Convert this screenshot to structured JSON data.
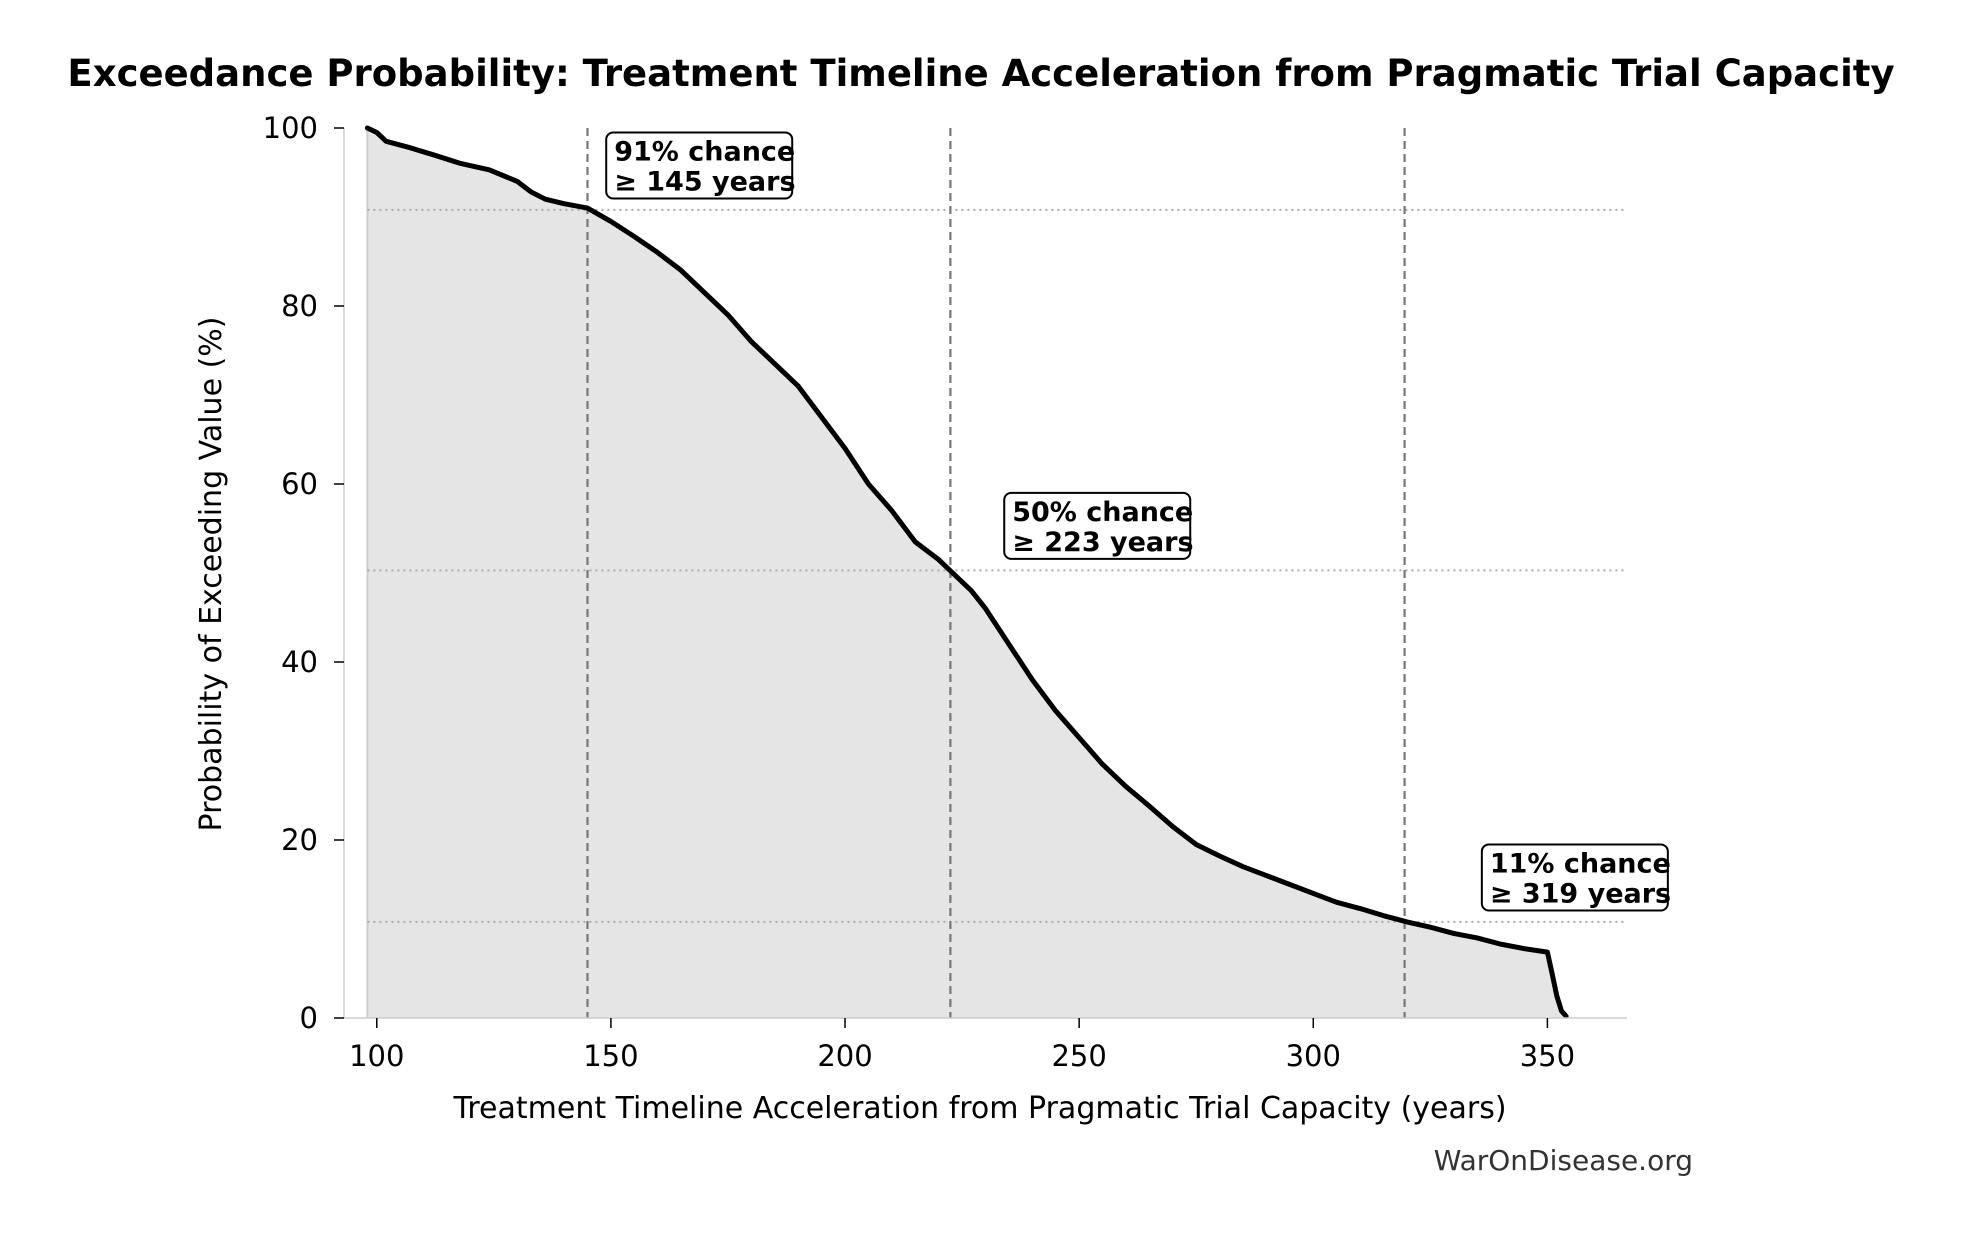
{
  "chart_data": {
    "type": "area",
    "title": "Exceedance Probability: Treatment Timeline Acceleration from Pragmatic Trial Capacity",
    "xlabel": "Treatment Timeline Acceleration from Pragmatic Trial Capacity (years)",
    "ylabel": "Probability of Exceeding Value (%)",
    "xlim": [
      93,
      367
    ],
    "ylim": [
      0,
      100
    ],
    "xticks": [
      100,
      150,
      200,
      250,
      300,
      350
    ],
    "yticks": [
      0,
      20,
      40,
      60,
      80,
      100
    ],
    "grid": false,
    "series": [
      {
        "x": [
          98,
          100,
          102,
          107,
          112,
          118,
          124,
          130,
          133,
          136,
          140,
          145,
          150,
          155,
          160,
          165,
          170,
          175,
          180,
          185,
          190,
          195,
          200,
          205,
          210,
          215,
          220,
          223,
          227,
          230,
          235,
          240,
          245,
          250,
          255,
          260,
          265,
          270,
          275,
          280,
          285,
          290,
          295,
          300,
          305,
          310,
          315,
          320,
          325,
          330,
          335,
          340,
          345,
          350,
          351,
          352,
          353,
          354
        ],
        "y": [
          100,
          99.5,
          98.5,
          97.8,
          97,
          96,
          95.3,
          94,
          92.8,
          92,
          91.5,
          91,
          89.5,
          87.8,
          86,
          84,
          81.5,
          79,
          76,
          73.5,
          71,
          67.5,
          64,
          60,
          57,
          53.5,
          51.5,
          50,
          48,
          46,
          42,
          38,
          34.5,
          31.5,
          28.5,
          26,
          23.8,
          21.5,
          19.5,
          18.2,
          17,
          16,
          15,
          14,
          13,
          12.3,
          11.5,
          10.8,
          10.2,
          9.5,
          9,
          8.3,
          7.8,
          7.4,
          5,
          2.5,
          0.8,
          0.2
        ]
      }
    ],
    "reference_lines": [
      {
        "x": 145,
        "y": 90.8,
        "label_line1": "91% chance",
        "label_line2": "≥ 145 years",
        "label_x": 149,
        "label_y": 99.5
      },
      {
        "x": 222.5,
        "y": 50.3,
        "label_line1": "50% chance",
        "label_line2": "≥ 223 years",
        "label_x": 234,
        "label_y": 59
      },
      {
        "x": 319.5,
        "y": 10.8,
        "label_line1": "11% chance",
        "label_line2": "≥ 319 years",
        "label_x": 336,
        "label_y": 19.5
      }
    ],
    "colors": {
      "line": "#000000",
      "fill": "#e5e5e5",
      "ref_line": "#777777",
      "h_line": "#aaaaaa",
      "axis": "#cccccc"
    }
  },
  "watermark": "WarOnDisease.org"
}
